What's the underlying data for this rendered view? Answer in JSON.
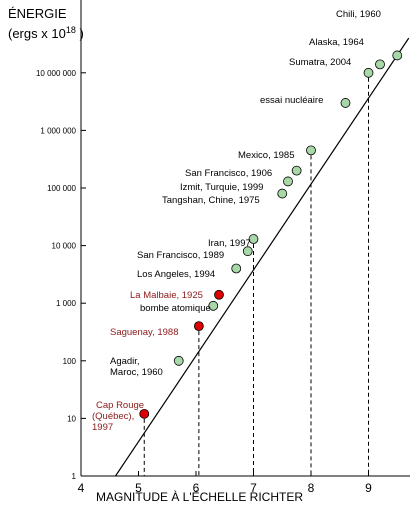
{
  "chart_data": {
    "type": "scatter",
    "title": "",
    "ylabel_line1": "ÉNERGIE",
    "ylabel_line2_prefix": "(ergs x 10",
    "ylabel_line2_exp": "18",
    "ylabel_line2_suffix": " )",
    "xlabel": "MAGNITUDE À L'ÉCHELLE RICHTER",
    "xlim": [
      4,
      9.7
    ],
    "ylim": [
      1,
      30000000
    ],
    "yscale": "log",
    "x_ticks": [
      "4",
      "5",
      "6",
      "7",
      "8",
      "9"
    ],
    "y_ticks": [
      "1",
      "10",
      "100",
      "1 000",
      "10 000",
      "100 000",
      "1 000 000",
      "10 000 000"
    ],
    "y_tick_values": [
      1,
      10,
      100,
      1000,
      10000,
      100000,
      1000000,
      10000000
    ],
    "fit_line": {
      "x": [
        4.6,
        9.7
      ],
      "y": [
        1,
        40000000
      ]
    },
    "colors": {
      "green": "#a8d8a8",
      "red": "#dd0000",
      "red_text": "#8b1a1a",
      "axis": "#000000"
    },
    "points": [
      {
        "label": "Chili, 1960",
        "x": 9.5,
        "y": 20000000,
        "color": "green",
        "dashed": false
      },
      {
        "label": "Alaska, 1964",
        "x": 9.2,
        "y": 14000000,
        "color": "green",
        "dashed": false
      },
      {
        "label": "Sumatra, 2004",
        "x": 9.0,
        "y": 10000000,
        "color": "green",
        "dashed": true
      },
      {
        "label": "essai nucléaire",
        "x": 8.6,
        "y": 3000000,
        "color": "green",
        "dashed": false
      },
      {
        "label": "Mexico, 1985",
        "x": 8.0,
        "y": 450000,
        "color": "green",
        "dashed": true
      },
      {
        "label": "San Francisco, 1906",
        "x": 7.75,
        "y": 200000,
        "color": "green",
        "dashed": false
      },
      {
        "label": "Izmit, Turquie, 1999",
        "x": 7.6,
        "y": 130000,
        "color": "green",
        "dashed": false
      },
      {
        "label": "Tangshan, Chine, 1975",
        "x": 7.5,
        "y": 80000,
        "color": "green",
        "dashed": false
      },
      {
        "label": "Iran, 1997",
        "x": 7.0,
        "y": 13000,
        "color": "green",
        "dashed": true
      },
      {
        "label": "San Francisco, 1989",
        "x": 6.9,
        "y": 8000,
        "color": "green",
        "dashed": false
      },
      {
        "label": "Los Angeles, 1994",
        "x": 6.7,
        "y": 4000,
        "color": "green",
        "dashed": false
      },
      {
        "label": "La Malbaie, 1925",
        "x": 6.4,
        "y": 1400,
        "color": "red",
        "dashed": false
      },
      {
        "label": "bombe atomique",
        "x": 6.3,
        "y": 900,
        "color": "green",
        "dashed": false
      },
      {
        "label": "Saguenay, 1988",
        "x": 6.05,
        "y": 400,
        "color": "red",
        "dashed": true
      },
      {
        "label": "Agadir, Maroc, 1960",
        "x": 5.7,
        "y": 100,
        "color": "green",
        "dashed": false
      },
      {
        "label": "Cap Rouge (Québec), 1997",
        "x": 5.1,
        "y": 12,
        "color": "red",
        "dashed": true
      }
    ]
  },
  "annotations": {
    "chili": "Chili, 1960",
    "alaska": "Alaska, 1964",
    "sumatra": "Sumatra, 2004",
    "essai": "essai nucléaire",
    "mexico": "Mexico, 1985",
    "sf1906": "San Francisco, 1906",
    "izmit": "Izmit, Turquie, 1999",
    "tangshan": "Tangshan, Chine, 1975",
    "iran": "Iran, 1997",
    "sf1989": "San Francisco, 1989",
    "la": "Los Angeles, 1994",
    "malbaie": "La Malbaie, 1925",
    "bombe": "bombe atomique",
    "saguenay": "Saguenay, 1988",
    "agadir_1": "Agadir,",
    "agadir_2": "Maroc, 1960",
    "caprouge_1": "Cap Rouge",
    "caprouge_2": "(Québec),",
    "caprouge_3": "1997"
  }
}
